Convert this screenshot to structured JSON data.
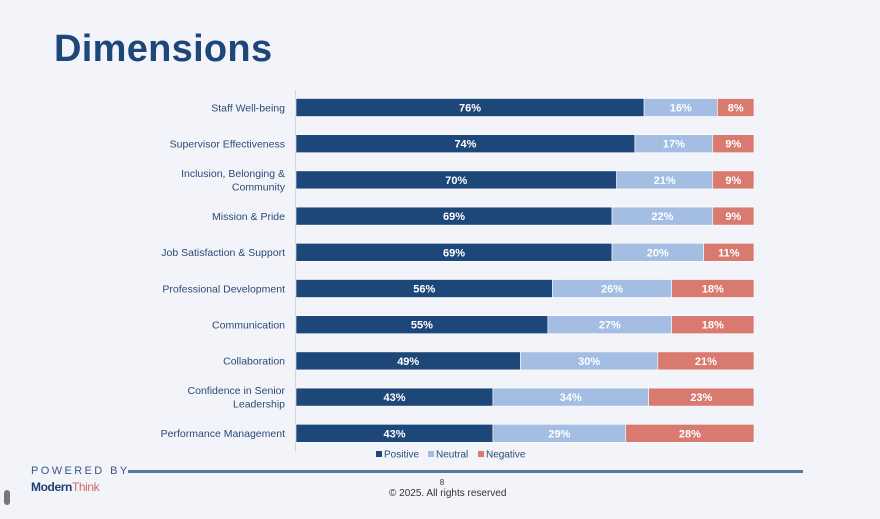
{
  "slide": {
    "title": "Dimensions",
    "powered_by": "POWERED BY",
    "logo_part1": "Modern",
    "logo_part2": "Think",
    "page_number": "8",
    "copyright": "© 2025. All rights reserved"
  },
  "chart_data": {
    "type": "bar",
    "orientation": "horizontal",
    "stacked": true,
    "percent_stacked": true,
    "title": "Dimensions",
    "xlabel": "",
    "ylabel": "",
    "xlim": [
      0,
      100
    ],
    "grid": false,
    "legend_position": "bottom",
    "categories": [
      "Staff Well-being",
      "Supervisor Effectiveness",
      "Inclusion, Belonging & Community",
      "Mission & Pride",
      "Job Satisfaction & Support",
      "Professional Development",
      "Communication",
      "Collaboration",
      "Confidence in Senior Leadership",
      "Performance Management"
    ],
    "category_lines": [
      [
        "Staff Well-being"
      ],
      [
        "Supervisor Effectiveness"
      ],
      [
        "Inclusion, Belonging &",
        "Community"
      ],
      [
        "Mission & Pride"
      ],
      [
        "Job Satisfaction & Support"
      ],
      [
        "Professional Development"
      ],
      [
        "Communication"
      ],
      [
        "Collaboration"
      ],
      [
        "Confidence in Senior",
        "Leadership"
      ],
      [
        "Performance Management"
      ]
    ],
    "series": [
      {
        "name": "Positive",
        "color": "#1d4679",
        "values": [
          76,
          74,
          70,
          69,
          69,
          56,
          55,
          49,
          43,
          43
        ]
      },
      {
        "name": "Neutral",
        "color": "#a3bde3",
        "values": [
          16,
          17,
          21,
          22,
          20,
          26,
          27,
          30,
          34,
          29
        ]
      },
      {
        "name": "Negative",
        "color": "#d97a70",
        "values": [
          8,
          9,
          9,
          9,
          11,
          18,
          18,
          21,
          23,
          28
        ]
      }
    ],
    "value_suffix": "%"
  }
}
